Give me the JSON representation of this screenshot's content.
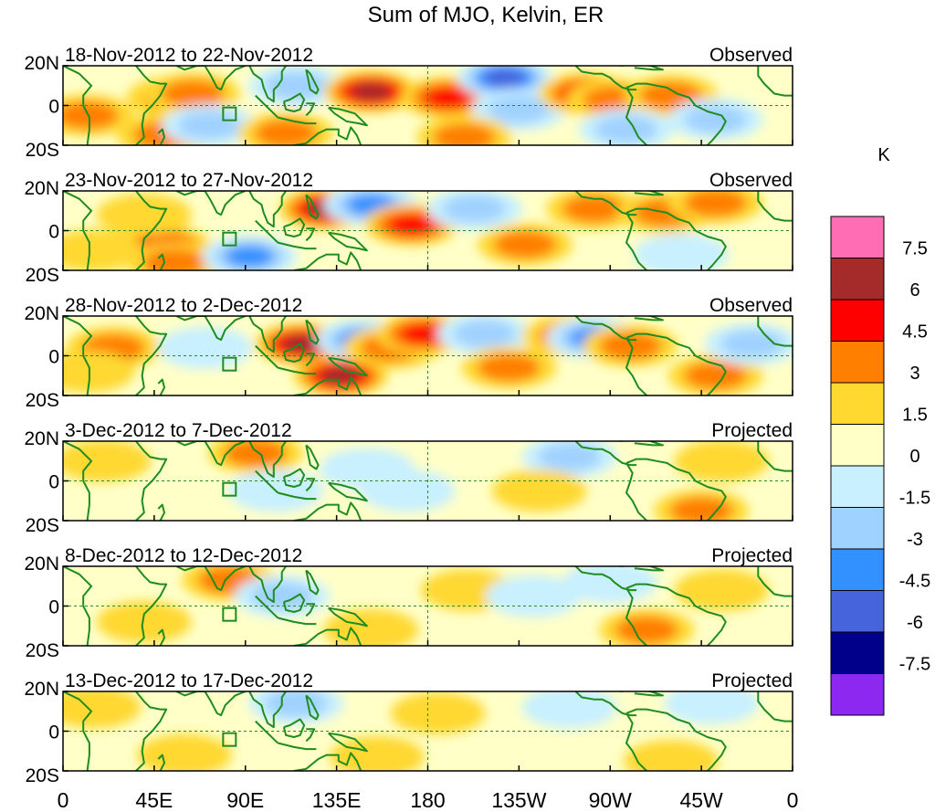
{
  "chart_data": {
    "type": "heatmap",
    "title": "Sum of MJO, Kelvin, ER",
    "units": "K",
    "x_ticks": [
      "0",
      "45E",
      "90E",
      "135E",
      "180",
      "135W",
      "90W",
      "45W",
      "0"
    ],
    "y_ticks": [
      "20N",
      "0",
      "20S"
    ],
    "colorbar": {
      "labels": [
        "7.5",
        "6",
        "4.5",
        "3",
        "1.5",
        "0",
        "-1.5",
        "-3",
        "-4.5",
        "-6",
        "-7.5"
      ],
      "colors": [
        "#ff6eb4",
        "#a52a2a",
        "#ff0000",
        "#ff7f00",
        "#ffd830",
        "#ffffc8",
        "#c8f0ff",
        "#a0d2ff",
        "#3290ff",
        "#4664dc",
        "#00008b",
        "#8c28f0"
      ]
    },
    "panels": [
      {
        "period": "18-Nov-2012 to 22-Nov-2012",
        "status": "Observed",
        "blobs": [
          {
            "lon": 12,
            "lat": -5,
            "v": 3
          },
          {
            "lon": 55,
            "lat": 4,
            "v": 4
          },
          {
            "lon": 64,
            "lat": 6,
            "v": 3.5
          },
          {
            "lon": 50,
            "lat": -15,
            "v": 3
          },
          {
            "lon": 72,
            "lat": -10,
            "v": -4
          },
          {
            "lon": 110,
            "lat": -14,
            "v": 4
          },
          {
            "lon": 115,
            "lat": 10,
            "v": -3.5
          },
          {
            "lon": 152,
            "lat": 7,
            "v": 6.5
          },
          {
            "lon": 190,
            "lat": 4,
            "v": 4.5
          },
          {
            "lon": 218,
            "lat": 14,
            "v": -6.5
          },
          {
            "lon": 225,
            "lat": -2,
            "v": -3.5
          },
          {
            "lon": 258,
            "lat": 6,
            "v": 4.5
          },
          {
            "lon": 272,
            "lat": 3,
            "v": 4
          },
          {
            "lon": 300,
            "lat": 5,
            "v": 3
          },
          {
            "lon": 322,
            "lat": -7,
            "v": -4
          },
          {
            "lon": 278,
            "lat": -12,
            "v": -3
          },
          {
            "lon": 198,
            "lat": -16,
            "v": 3
          }
        ]
      },
      {
        "period": "23-Nov-2012 to 27-Nov-2012",
        "status": "Observed",
        "blobs": [
          {
            "lon": 50,
            "lat": -8,
            "v": 5
          },
          {
            "lon": 55,
            "lat": -16,
            "v": 4
          },
          {
            "lon": 92,
            "lat": -13,
            "v": -4.5
          },
          {
            "lon": 40,
            "lat": 8,
            "v": 2
          },
          {
            "lon": 130,
            "lat": 11,
            "v": 7
          },
          {
            "lon": 152,
            "lat": 13,
            "v": -5.5
          },
          {
            "lon": 172,
            "lat": 3,
            "v": 4.5
          },
          {
            "lon": 203,
            "lat": 11,
            "v": -4
          },
          {
            "lon": 228,
            "lat": -7,
            "v": 4
          },
          {
            "lon": 262,
            "lat": 11,
            "v": 4
          },
          {
            "lon": 297,
            "lat": 9,
            "v": 3
          },
          {
            "lon": 322,
            "lat": 14,
            "v": 3.5
          },
          {
            "lon": 15,
            "lat": -10,
            "v": 2.5
          },
          {
            "lon": 305,
            "lat": -12,
            "v": -2.5
          }
        ]
      },
      {
        "period": "28-Nov-2012 to 2-Dec-2012",
        "status": "Observed",
        "blobs": [
          {
            "lon": 25,
            "lat": 4,
            "v": 4
          },
          {
            "lon": 12,
            "lat": -8,
            "v": 2.5
          },
          {
            "lon": 70,
            "lat": 4,
            "v": -2.5
          },
          {
            "lon": 118,
            "lat": 6,
            "v": 6
          },
          {
            "lon": 137,
            "lat": -10,
            "v": 6.5
          },
          {
            "lon": 148,
            "lat": 8,
            "v": -5
          },
          {
            "lon": 162,
            "lat": 4,
            "v": 3.5
          },
          {
            "lon": 178,
            "lat": 11,
            "v": 4.5
          },
          {
            "lon": 208,
            "lat": 11,
            "v": -4
          },
          {
            "lon": 220,
            "lat": -6,
            "v": 4
          },
          {
            "lon": 250,
            "lat": 10,
            "v": 3.5
          },
          {
            "lon": 262,
            "lat": 9,
            "v": -4.5
          },
          {
            "lon": 280,
            "lat": 5,
            "v": 3
          },
          {
            "lon": 322,
            "lat": -10,
            "v": 3.5
          },
          {
            "lon": 340,
            "lat": 6,
            "v": -3
          }
        ]
      },
      {
        "period": "3-Dec-2012 to 7-Dec-2012",
        "status": "Projected",
        "blobs": [
          {
            "lon": 95,
            "lat": 14,
            "v": 3.5
          },
          {
            "lon": 105,
            "lat": -5,
            "v": -2.5
          },
          {
            "lon": 150,
            "lat": 6,
            "v": -2.5
          },
          {
            "lon": 170,
            "lat": -5,
            "v": -2
          },
          {
            "lon": 250,
            "lat": 12,
            "v": -3.5
          },
          {
            "lon": 235,
            "lat": -5,
            "v": 2
          },
          {
            "lon": 315,
            "lat": -15,
            "v": 3
          },
          {
            "lon": 325,
            "lat": 10,
            "v": 2
          },
          {
            "lon": 20,
            "lat": 10,
            "v": 2
          }
        ]
      },
      {
        "period": "8-Dec-2012 to 12-Dec-2012",
        "status": "Projected",
        "blobs": [
          {
            "lon": 82,
            "lat": 13,
            "v": 3.5
          },
          {
            "lon": 108,
            "lat": 5,
            "v": -3
          },
          {
            "lon": 152,
            "lat": -12,
            "v": 2.5
          },
          {
            "lon": 200,
            "lat": 8,
            "v": 1.5
          },
          {
            "lon": 232,
            "lat": 5,
            "v": -2
          },
          {
            "lon": 270,
            "lat": 12,
            "v": -2.5
          },
          {
            "lon": 288,
            "lat": -12,
            "v": 3
          },
          {
            "lon": 325,
            "lat": 8,
            "v": 2.5
          },
          {
            "lon": 40,
            "lat": -8,
            "v": 1.5
          }
        ]
      },
      {
        "period": "13-Dec-2012 to 17-Dec-2012",
        "status": "Projected",
        "blobs": [
          {
            "lon": 115,
            "lat": 14,
            "v": -3.5
          },
          {
            "lon": 60,
            "lat": -12,
            "v": 2
          },
          {
            "lon": 155,
            "lat": -13,
            "v": 2
          },
          {
            "lon": 185,
            "lat": 9,
            "v": 1.5
          },
          {
            "lon": 250,
            "lat": 12,
            "v": -2
          },
          {
            "lon": 300,
            "lat": -15,
            "v": 2
          },
          {
            "lon": 320,
            "lat": 14,
            "v": -2.5
          },
          {
            "lon": 15,
            "lat": 12,
            "v": 1.5
          }
        ]
      }
    ]
  }
}
